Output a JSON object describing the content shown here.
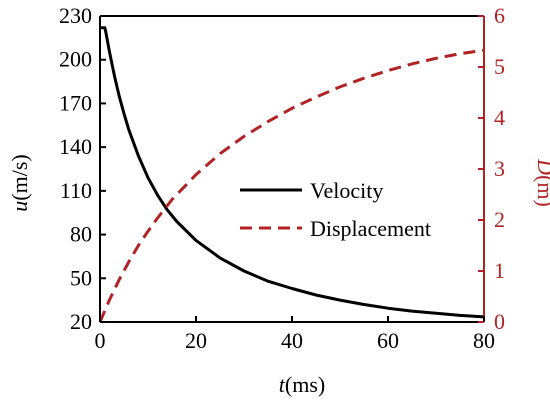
{
  "chart_data": {
    "type": "line",
    "x_axis": {
      "label_var": "t",
      "label_unit": "(ms)",
      "range": [
        0,
        80
      ],
      "ticks": [
        0,
        20,
        40,
        60,
        80
      ]
    },
    "y_left": {
      "label_var": "u",
      "label_unit": "(m/s)",
      "range": [
        20,
        230
      ],
      "ticks": [
        20,
        50,
        80,
        110,
        140,
        170,
        200,
        230
      ]
    },
    "y_right": {
      "label_var": "D",
      "label_unit": "(m)",
      "range": [
        0,
        6
      ],
      "ticks": [
        0,
        1,
        2,
        3,
        4,
        5,
        6
      ],
      "color": "#b22222"
    },
    "series": [
      {
        "name": "Velocity",
        "axis": "left",
        "color": "#000000",
        "style": "solid",
        "x": [
          0,
          0.5,
          1,
          1.2,
          2,
          3,
          4,
          5,
          6,
          8,
          10,
          12,
          14,
          16,
          20,
          25,
          30,
          35,
          40,
          45,
          50,
          55,
          60,
          65,
          70,
          75,
          80
        ],
        "y": [
          222,
          222,
          222,
          219,
          205,
          189,
          175,
          163,
          152,
          134,
          119,
          107,
          97,
          89,
          76,
          64,
          55,
          48,
          43,
          38.5,
          35,
          32,
          29.5,
          27.5,
          26,
          24.5,
          23.5
        ]
      },
      {
        "name": "Displacement",
        "axis": "right",
        "color": "#b22222",
        "style": "dashed",
        "x": [
          0,
          2,
          4,
          6,
          8,
          10,
          12,
          15,
          20,
          25,
          30,
          35,
          40,
          45,
          50,
          55,
          60,
          65,
          70,
          75,
          80
        ],
        "y": [
          0,
          0.44,
          0.83,
          1.18,
          1.5,
          1.78,
          2.04,
          2.4,
          2.89,
          3.3,
          3.64,
          3.93,
          4.19,
          4.41,
          4.61,
          4.78,
          4.93,
          5.06,
          5.17,
          5.26,
          5.33
        ]
      }
    ],
    "legend_position": "center-right"
  }
}
